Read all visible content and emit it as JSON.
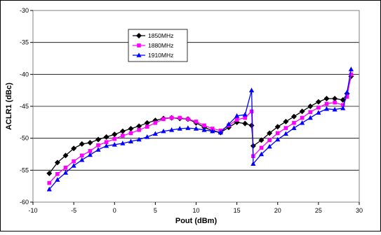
{
  "chart_data": {
    "type": "line",
    "title": "",
    "xlabel": "Pout (dBm)",
    "ylabel": "ACLR1 (dBc)",
    "xlim": [
      -10,
      30
    ],
    "ylim": [
      -60,
      -30
    ],
    "xticks": [
      -10,
      -5,
      0,
      5,
      10,
      15,
      20,
      25,
      30
    ],
    "yticks": [
      -60,
      -55,
      -50,
      -45,
      -40,
      -35,
      -30
    ],
    "grid": "horizontal",
    "legend": "inside-top-left",
    "series": [
      {
        "name": "1850MHz",
        "color": "#000000",
        "marker": "diamond",
        "x": [
          -8,
          -7,
          -6,
          -5,
          -4,
          -3,
          -2,
          -1,
          0,
          1,
          2,
          3,
          4,
          5,
          6,
          7,
          8,
          9,
          10,
          11,
          12,
          13,
          14,
          15,
          16,
          16.8,
          17,
          18,
          19,
          20,
          21,
          22,
          23,
          24,
          25,
          26,
          27,
          28,
          28.5,
          29
        ],
        "y": [
          -55.5,
          -53.8,
          -52.7,
          -51.6,
          -50.9,
          -50.7,
          -50.2,
          -49.8,
          -49.4,
          -48.9,
          -48.5,
          -48.1,
          -47.6,
          -47.2,
          -46.9,
          -46.8,
          -46.9,
          -47.0,
          -47.6,
          -48.3,
          -48.8,
          -49.1,
          -48.3,
          -47.5,
          -47.7,
          -48.0,
          -51.2,
          -50.3,
          -49.2,
          -48.2,
          -47.4,
          -46.6,
          -45.8,
          -45.0,
          -44.3,
          -43.8,
          -43.8,
          -44.0,
          -43.0,
          -40.3
        ]
      },
      {
        "name": "1880MHz",
        "color": "#ff00ff",
        "marker": "square",
        "x": [
          -8,
          -7,
          -6,
          -5,
          -4,
          -3,
          -2,
          -1,
          0,
          1,
          2,
          3,
          4,
          5,
          6,
          7,
          8,
          9,
          10,
          11,
          12,
          13,
          14,
          15,
          16,
          16.8,
          17,
          18,
          19,
          20,
          21,
          22,
          23,
          24,
          25,
          26,
          27,
          28,
          28.5,
          29
        ],
        "y": [
          -57.0,
          -55.6,
          -54.6,
          -53.6,
          -52.7,
          -52.0,
          -51.1,
          -50.6,
          -50.1,
          -49.6,
          -49.2,
          -48.7,
          -48.2,
          -47.6,
          -47.0,
          -46.8,
          -46.8,
          -47.0,
          -47.4,
          -48.0,
          -48.5,
          -48.8,
          -48.0,
          -47.1,
          -46.8,
          -45.8,
          -52.8,
          -51.5,
          -50.3,
          -49.2,
          -48.4,
          -47.6,
          -46.8,
          -45.9,
          -45.2,
          -44.6,
          -44.4,
          -44.8,
          -43.5,
          -40.0
        ]
      },
      {
        "name": "1910MHz",
        "color": "#0000ff",
        "marker": "triangle",
        "x": [
          -8,
          -7,
          -6,
          -5,
          -4,
          -3,
          -2,
          -1,
          0,
          1,
          2,
          3,
          4,
          5,
          6,
          7,
          8,
          9,
          10,
          11,
          12,
          13,
          14,
          15,
          16,
          16.8,
          17,
          18,
          19,
          20,
          21,
          22,
          23,
          24,
          25,
          26,
          27,
          28,
          28.5,
          29
        ],
        "y": [
          -58.0,
          -56.5,
          -55.4,
          -54.3,
          -53.4,
          -52.6,
          -51.8,
          -51.2,
          -51.0,
          -50.8,
          -50.5,
          -50.2,
          -49.8,
          -49.3,
          -48.9,
          -48.7,
          -48.5,
          -48.4,
          -48.5,
          -48.7,
          -48.9,
          -49.1,
          -47.8,
          -46.5,
          -46.3,
          -42.5,
          -54.0,
          -52.5,
          -51.3,
          -50.2,
          -49.3,
          -48.4,
          -47.6,
          -46.8,
          -46.0,
          -45.4,
          -45.5,
          -45.3,
          -42.8,
          -39.2
        ]
      }
    ]
  }
}
